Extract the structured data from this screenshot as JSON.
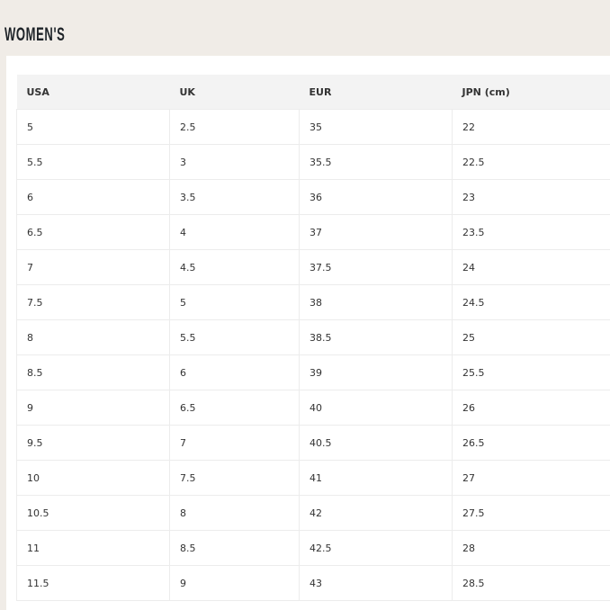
{
  "title": "WOMEN'S",
  "table": {
    "headers": [
      "USA",
      "UK",
      "EUR",
      "JPN (cm)"
    ],
    "rows": [
      [
        "5",
        "2.5",
        "35",
        "22"
      ],
      [
        "5.5",
        "3",
        "35.5",
        "22.5"
      ],
      [
        "6",
        "3.5",
        "36",
        "23"
      ],
      [
        "6.5",
        "4",
        "37",
        "23.5"
      ],
      [
        "7",
        "4.5",
        "37.5",
        "24"
      ],
      [
        "7.5",
        "5",
        "38",
        "24.5"
      ],
      [
        "8",
        "5.5",
        "38.5",
        "25"
      ],
      [
        "8.5",
        "6",
        "39",
        "25.5"
      ],
      [
        "9",
        "6.5",
        "40",
        "26"
      ],
      [
        "9.5",
        "7",
        "40.5",
        "26.5"
      ],
      [
        "10",
        "7.5",
        "41",
        "27"
      ],
      [
        "10.5",
        "8",
        "42",
        "27.5"
      ],
      [
        "11",
        "8.5",
        "42.5",
        "28"
      ],
      [
        "11.5",
        "9",
        "43",
        "28.5"
      ]
    ]
  }
}
